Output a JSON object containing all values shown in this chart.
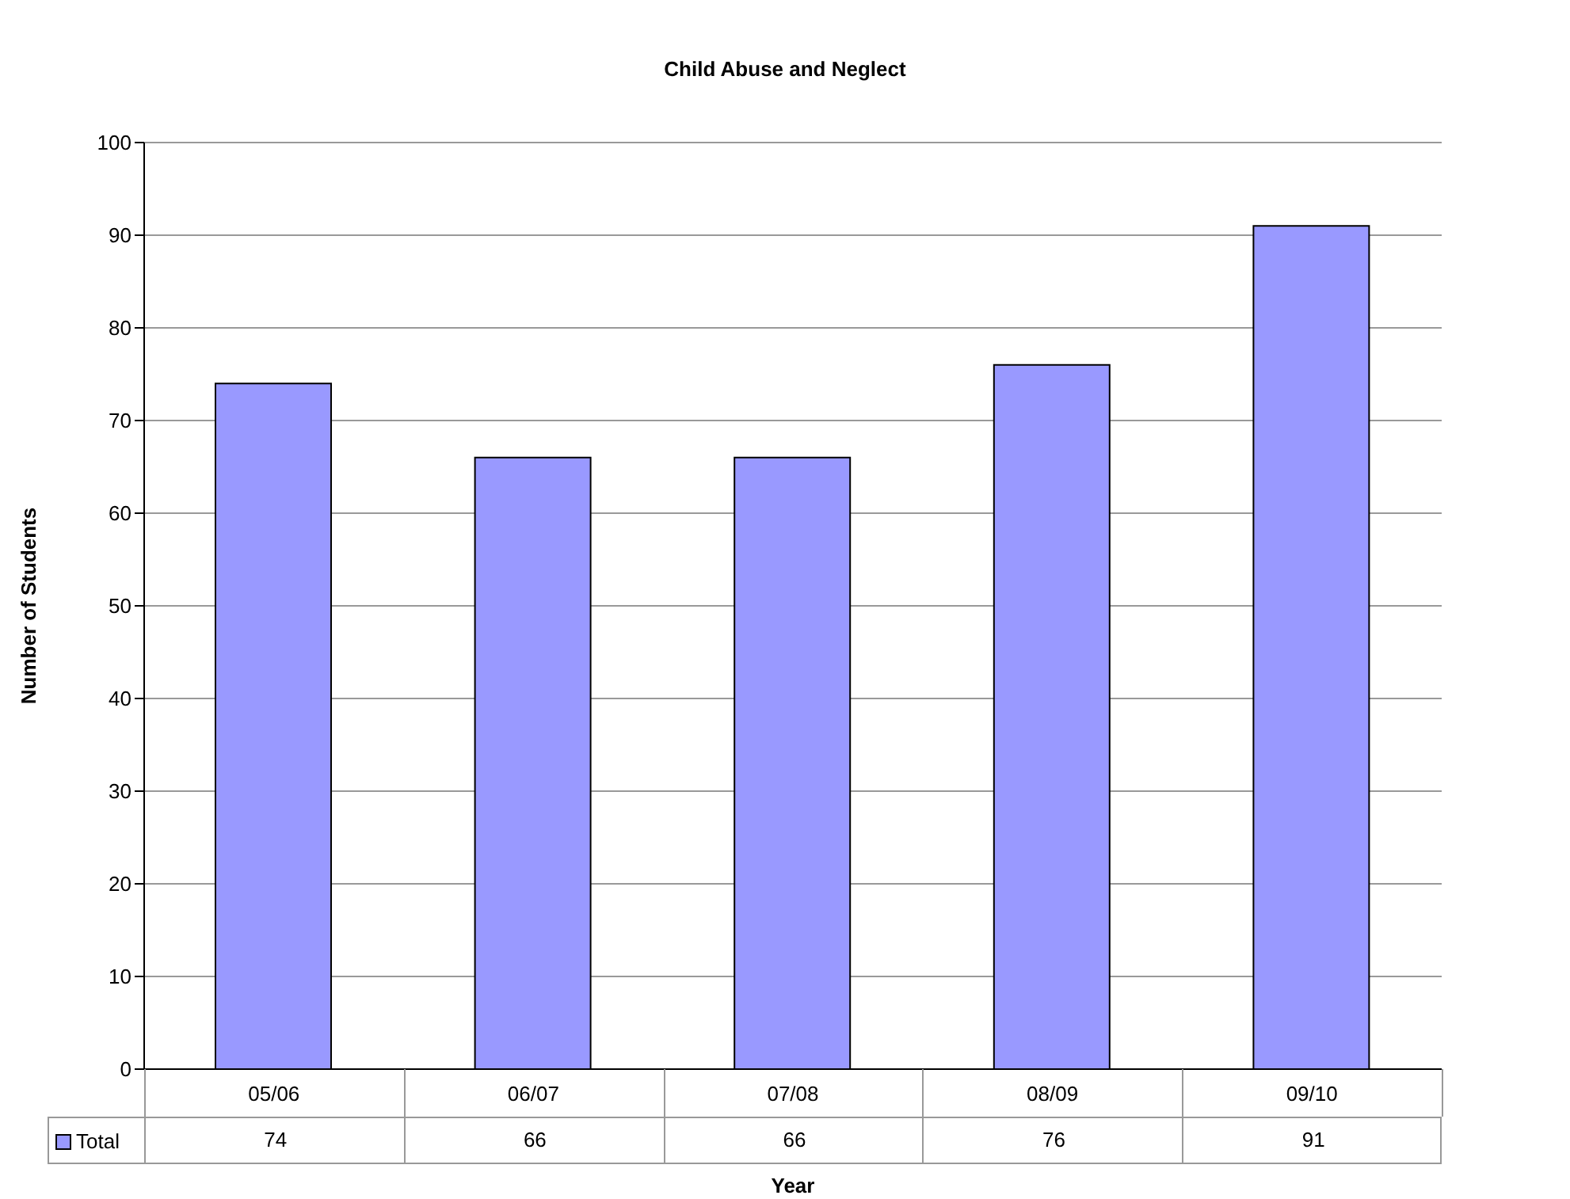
{
  "chart_data": {
    "type": "bar",
    "title": "Child Abuse and Neglect",
    "xlabel": "Year",
    "ylabel": "Number of Students",
    "categories": [
      "05/06",
      "06/07",
      "07/08",
      "08/09",
      "09/10"
    ],
    "series": [
      {
        "name": "Total",
        "color": "#9999ff",
        "values": [
          74,
          66,
          66,
          76,
          91
        ]
      }
    ],
    "ylim": [
      0,
      100
    ],
    "yticks": [
      0,
      10,
      20,
      30,
      40,
      50,
      60,
      70,
      80,
      90,
      100
    ],
    "grid": "y",
    "legend": "bottom",
    "data_labels": true
  }
}
